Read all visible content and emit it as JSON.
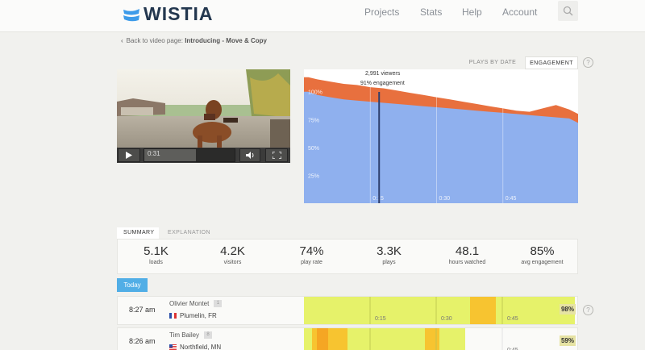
{
  "brand": "WISTIA",
  "nav": [
    "Projects",
    "Stats",
    "Help",
    "Account"
  ],
  "breadcrumb": {
    "prefix": "Back to video page:",
    "title": "Introducing - Move & Copy"
  },
  "chart_toggle": [
    "PLAYS BY DATE",
    "ENGAGEMENT"
  ],
  "video": {
    "time": "0:31",
    "progress": 0.57
  },
  "chart": {
    "viewers": "2,991 viewers",
    "engagement": "91% engagement",
    "y_ticks": [
      "100%",
      "75%",
      "50%",
      "25%"
    ],
    "x_ticks": [
      "0:15",
      "0:30",
      "0:45"
    ]
  },
  "chart_data": {
    "type": "area",
    "x": [
      0,
      1,
      3,
      6,
      9,
      12,
      15,
      18,
      21,
      24,
      27,
      30,
      33,
      36,
      39,
      42,
      45,
      48,
      51,
      54,
      57,
      60,
      62
    ],
    "series": [
      {
        "values": [
          113,
          113,
          111,
          109,
          107,
          106,
          104,
          103,
          101,
          99,
          97,
          95,
          93,
          91,
          89,
          87,
          85,
          83,
          82,
          85,
          88,
          84,
          80
        ]
      },
      {
        "values": [
          100,
          100,
          97,
          95,
          93,
          92,
          91,
          90,
          89,
          88,
          87,
          86,
          85,
          84,
          83,
          82,
          81,
          80,
          79,
          78,
          77,
          76,
          72
        ]
      }
    ],
    "yticks": [
      "100%",
      "75%",
      "50%",
      "25%"
    ],
    "xticks": [
      "0:15",
      "0:30",
      "0:45"
    ],
    "ylim": [
      0,
      120
    ],
    "marker_x": 17,
    "colors": [
      "#e8703e",
      "#8fb0ee"
    ]
  },
  "summary_tabs": [
    "SUMMARY",
    "EXPLANATION"
  ],
  "stats": [
    {
      "value": "5.1K",
      "label": "loads"
    },
    {
      "value": "4.2K",
      "label": "visitors"
    },
    {
      "value": "74%",
      "label": "play rate"
    },
    {
      "value": "3.3K",
      "label": "plays"
    },
    {
      "value": "48.1",
      "label": "hours watched"
    },
    {
      "value": "85%",
      "label": "avg engagement"
    }
  ],
  "today_label": "Today",
  "viewers": [
    {
      "time": "8:27 am",
      "name": "Olivier Montet",
      "badge": "1",
      "location": "Plumelin, FR",
      "percent": "98%"
    },
    {
      "time": "8:26 am",
      "name": "Tim Bailey",
      "badge": "8",
      "location": "Northfield, MN",
      "percent": "59%"
    }
  ],
  "heatmap_ticks": [
    "0:15",
    "0:30",
    "0:45"
  ],
  "colors": {
    "accent": "#51aee6",
    "brand": "#23374f",
    "heat_base": "#e6f26a",
    "heat_hot": "#f7c430",
    "heat_hotter": "#f5a623"
  }
}
